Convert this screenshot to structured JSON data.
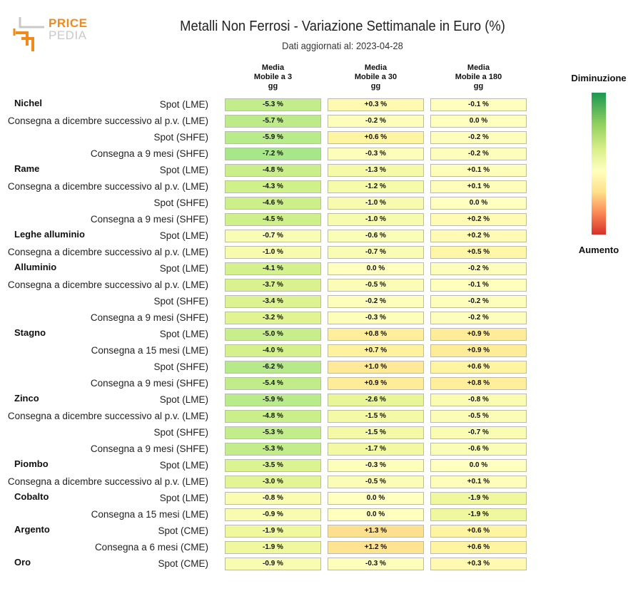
{
  "header": {
    "title": "Metalli Non Ferrosi - Variazione Settimanale in Euro (%)",
    "subtitle": "Dati aggiornati al: 2023-04-28"
  },
  "logo": {
    "line1": "PRICE",
    "line2": "PEDIA",
    "accent": "#f08a1c",
    "gray": "#c9c9c9"
  },
  "legend": {
    "top": "Diminuzione",
    "bottom": "Aumento"
  },
  "chart_data": {
    "type": "table",
    "title": "Metalli Non Ferrosi - Variazione Settimanale in Euro (%)",
    "columns": [
      {
        "l1": "Media",
        "l2": "Mobile a 3",
        "l3": "gg"
      },
      {
        "l1": "Media",
        "l2": "Mobile a 30",
        "l3": "gg"
      },
      {
        "l1": "Media",
        "l2": "Mobile a 180",
        "l3": "gg"
      }
    ],
    "rows": [
      {
        "group": "Nichel",
        "label": "Spot (LME)",
        "values": [
          -5.3,
          0.3,
          -0.1
        ],
        "text": [
          "-5.3 %",
          "+0.3 %",
          "-0.1 %"
        ]
      },
      {
        "group": "",
        "label": "Consegna a dicembre successivo al p.v. (LME)",
        "values": [
          -5.7,
          -0.2,
          0.0
        ],
        "text": [
          "-5.7 %",
          "-0.2 %",
          "0.0 %"
        ]
      },
      {
        "group": "",
        "label": "Spot (SHFE)",
        "values": [
          -5.9,
          0.6,
          -0.2
        ],
        "text": [
          "-5.9 %",
          "+0.6 %",
          "-0.2 %"
        ]
      },
      {
        "group": "",
        "label": "Consegna a 9 mesi (SHFE)",
        "values": [
          -7.2,
          -0.3,
          -0.2
        ],
        "text": [
          "-7.2 %",
          "-0.3 %",
          "-0.2 %"
        ]
      },
      {
        "group": "Rame",
        "label": "Spot (LME)",
        "values": [
          -4.8,
          -1.3,
          0.1
        ],
        "text": [
          "-4.8 %",
          "-1.3 %",
          "+0.1 %"
        ]
      },
      {
        "group": "",
        "label": "Consegna a dicembre successivo al p.v. (LME)",
        "values": [
          -4.3,
          -1.2,
          0.1
        ],
        "text": [
          "-4.3 %",
          "-1.2 %",
          "+0.1 %"
        ]
      },
      {
        "group": "",
        "label": "Spot (SHFE)",
        "values": [
          -4.6,
          -1.0,
          0.0
        ],
        "text": [
          "-4.6 %",
          "-1.0 %",
          "0.0 %"
        ]
      },
      {
        "group": "",
        "label": "Consegna a 9 mesi (SHFE)",
        "values": [
          -4.5,
          -1.0,
          0.2
        ],
        "text": [
          "-4.5 %",
          "-1.0 %",
          "+0.2 %"
        ]
      },
      {
        "group": "Leghe alluminio",
        "label": "Spot (LME)",
        "values": [
          -0.7,
          -0.6,
          0.2
        ],
        "text": [
          "-0.7 %",
          "-0.6 %",
          "+0.2 %"
        ]
      },
      {
        "group": "",
        "label": "Consegna a dicembre successivo al p.v. (LME)",
        "values": [
          -1.0,
          -0.7,
          0.5
        ],
        "text": [
          "-1.0 %",
          "-0.7 %",
          "+0.5 %"
        ]
      },
      {
        "group": "Alluminio",
        "label": "Spot (LME)",
        "values": [
          -4.1,
          0.0,
          -0.2
        ],
        "text": [
          "-4.1 %",
          "0.0 %",
          "-0.2 %"
        ]
      },
      {
        "group": "",
        "label": "Consegna a dicembre successivo al p.v. (LME)",
        "values": [
          -3.7,
          -0.5,
          -0.1
        ],
        "text": [
          "-3.7 %",
          "-0.5 %",
          "-0.1 %"
        ]
      },
      {
        "group": "",
        "label": "Spot (SHFE)",
        "values": [
          -3.4,
          -0.2,
          -0.2
        ],
        "text": [
          "-3.4 %",
          "-0.2 %",
          "-0.2 %"
        ]
      },
      {
        "group": "",
        "label": "Consegna a 9 mesi (SHFE)",
        "values": [
          -3.2,
          -0.3,
          -0.2
        ],
        "text": [
          "-3.2 %",
          "-0.3 %",
          "-0.2 %"
        ]
      },
      {
        "group": "Stagno",
        "label": "Spot (LME)",
        "values": [
          -5.0,
          0.8,
          0.9
        ],
        "text": [
          "-5.0 %",
          "+0.8 %",
          "+0.9 %"
        ]
      },
      {
        "group": "",
        "label": "Consegna a 15 mesi (LME)",
        "values": [
          -4.0,
          0.7,
          0.9
        ],
        "text": [
          "-4.0 %",
          "+0.7 %",
          "+0.9 %"
        ]
      },
      {
        "group": "",
        "label": "Spot (SHFE)",
        "values": [
          -6.2,
          1.0,
          0.6
        ],
        "text": [
          "-6.2 %",
          "+1.0 %",
          "+0.6 %"
        ]
      },
      {
        "group": "",
        "label": "Consegna a 9 mesi (SHFE)",
        "values": [
          -5.4,
          0.9,
          0.8
        ],
        "text": [
          "-5.4 %",
          "+0.9 %",
          "+0.8 %"
        ]
      },
      {
        "group": "Zinco",
        "label": "Spot (LME)",
        "values": [
          -5.9,
          -2.6,
          -0.8
        ],
        "text": [
          "-5.9 %",
          "-2.6 %",
          "-0.8 %"
        ]
      },
      {
        "group": "",
        "label": "Consegna a dicembre successivo al p.v. (LME)",
        "values": [
          -4.8,
          -1.5,
          -0.5
        ],
        "text": [
          "-4.8 %",
          "-1.5 %",
          "-0.5 %"
        ]
      },
      {
        "group": "",
        "label": "Spot (SHFE)",
        "values": [
          -5.3,
          -1.5,
          -0.7
        ],
        "text": [
          "-5.3 %",
          "-1.5 %",
          "-0.7 %"
        ]
      },
      {
        "group": "",
        "label": "Consegna a 9 mesi (SHFE)",
        "values": [
          -5.3,
          -1.7,
          -0.6
        ],
        "text": [
          "-5.3 %",
          "-1.7 %",
          "-0.6 %"
        ]
      },
      {
        "group": "Piombo",
        "label": "Spot (LME)",
        "values": [
          -3.5,
          -0.3,
          0.0
        ],
        "text": [
          "-3.5 %",
          "-0.3 %",
          "0.0 %"
        ]
      },
      {
        "group": "",
        "label": "Consegna a dicembre successivo al p.v. (LME)",
        "values": [
          -3.0,
          -0.5,
          0.1
        ],
        "text": [
          "-3.0 %",
          "-0.5 %",
          "+0.1 %"
        ]
      },
      {
        "group": "Cobalto",
        "label": "Spot (LME)",
        "values": [
          -0.8,
          0.0,
          -1.9
        ],
        "text": [
          "-0.8 %",
          "0.0 %",
          "-1.9 %"
        ]
      },
      {
        "group": "",
        "label": "Consegna a 15 mesi (LME)",
        "values": [
          -0.9,
          0.0,
          -1.9
        ],
        "text": [
          "-0.9 %",
          "0.0 %",
          "-1.9 %"
        ]
      },
      {
        "group": "Argento",
        "label": "Spot (CME)",
        "values": [
          -1.9,
          1.3,
          0.6
        ],
        "text": [
          "-1.9 %",
          "+1.3 %",
          "+0.6 %"
        ]
      },
      {
        "group": "",
        "label": "Consegna a 6 mesi (CME)",
        "values": [
          -1.9,
          1.2,
          0.6
        ],
        "text": [
          "-1.9 %",
          "+1.2 %",
          "+0.6 %"
        ]
      },
      {
        "group": "Oro",
        "label": "Spot (CME)",
        "values": [
          -0.9,
          -0.3,
          0.3
        ],
        "text": [
          "-0.9 %",
          "-0.3 %",
          "+0.3 %"
        ]
      }
    ],
    "color_scale": {
      "min_color": "#1a9850",
      "mid_color": "#ffffbf",
      "max_color": "#d73027"
    }
  }
}
